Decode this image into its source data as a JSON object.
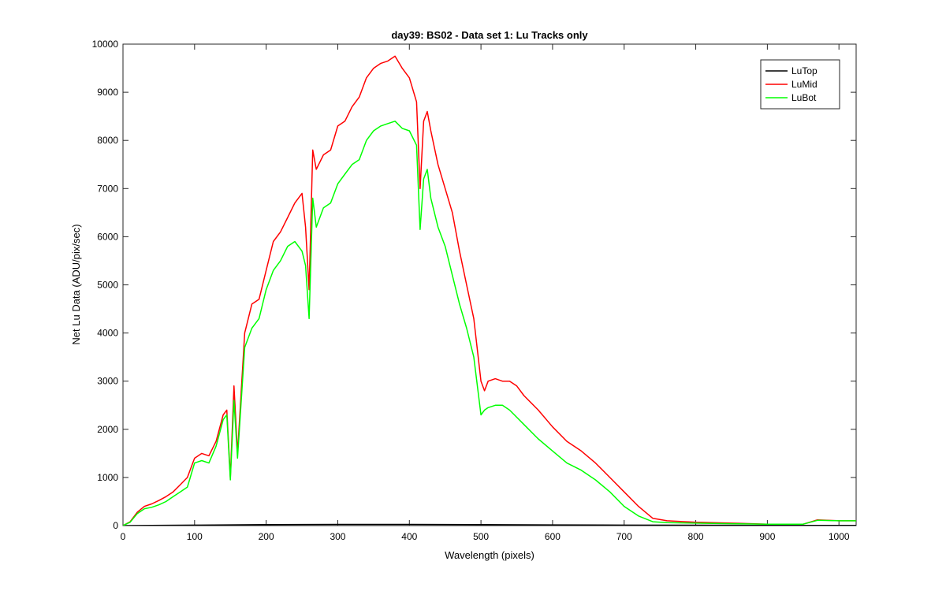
{
  "chart_data": {
    "type": "line",
    "title": "day39: BS02 - Data set 1: Lu Tracks only",
    "xlabel": "Wavelength (pixels)",
    "ylabel": "Net Lu Data (ADU/pix/sec)",
    "xlim": [
      0,
      1024
    ],
    "ylim": [
      0,
      10000
    ],
    "xticks": [
      0,
      100,
      200,
      300,
      400,
      500,
      600,
      700,
      800,
      900,
      1000
    ],
    "yticks": [
      0,
      1000,
      2000,
      3000,
      4000,
      5000,
      6000,
      7000,
      8000,
      9000,
      10000
    ],
    "grid": false,
    "legend_position": "top-right",
    "series": [
      {
        "name": "LuTop",
        "color": "#000000",
        "x": [
          0,
          100,
          200,
          300,
          400,
          500,
          600,
          700,
          800,
          900,
          1024
        ],
        "y": [
          0,
          10,
          20,
          25,
          25,
          20,
          15,
          10,
          8,
          5,
          5
        ]
      },
      {
        "name": "LuMid",
        "color": "#ff0000",
        "x": [
          0,
          10,
          20,
          30,
          40,
          50,
          60,
          70,
          80,
          90,
          100,
          110,
          120,
          130,
          140,
          145,
          150,
          155,
          160,
          170,
          180,
          190,
          200,
          210,
          220,
          230,
          240,
          250,
          255,
          260,
          265,
          270,
          280,
          290,
          300,
          310,
          320,
          330,
          340,
          350,
          360,
          370,
          380,
          390,
          400,
          410,
          415,
          420,
          425,
          430,
          440,
          450,
          460,
          470,
          480,
          490,
          500,
          505,
          510,
          520,
          530,
          540,
          550,
          560,
          580,
          600,
          620,
          640,
          660,
          680,
          700,
          720,
          740,
          760,
          800,
          850,
          900,
          950,
          970,
          1000,
          1024
        ],
        "y": [
          0,
          80,
          280,
          400,
          450,
          520,
          600,
          700,
          850,
          1000,
          1400,
          1500,
          1450,
          1750,
          2300,
          2400,
          1000,
          2900,
          1500,
          4000,
          4600,
          4700,
          5300,
          5900,
          6100,
          6400,
          6700,
          6900,
          6200,
          4900,
          7800,
          7400,
          7700,
          7800,
          8300,
          8400,
          8700,
          8900,
          9300,
          9500,
          9600,
          9650,
          9750,
          9500,
          9300,
          8800,
          7000,
          8400,
          8600,
          8200,
          7500,
          7000,
          6500,
          5700,
          5000,
          4300,
          3000,
          2800,
          3000,
          3050,
          3000,
          3000,
          2900,
          2700,
          2400,
          2050,
          1750,
          1550,
          1300,
          1000,
          700,
          400,
          150,
          100,
          70,
          50,
          30,
          30,
          120,
          100,
          100
        ]
      },
      {
        "name": "LuBot",
        "color": "#00ff00",
        "x": [
          0,
          10,
          20,
          30,
          40,
          50,
          60,
          70,
          80,
          90,
          100,
          110,
          120,
          130,
          140,
          145,
          150,
          155,
          160,
          170,
          180,
          190,
          200,
          210,
          220,
          230,
          240,
          250,
          255,
          260,
          265,
          270,
          280,
          290,
          300,
          310,
          320,
          330,
          340,
          350,
          360,
          370,
          380,
          390,
          400,
          410,
          415,
          420,
          425,
          430,
          440,
          450,
          460,
          470,
          480,
          490,
          500,
          505,
          510,
          520,
          530,
          540,
          550,
          560,
          580,
          600,
          620,
          640,
          660,
          680,
          700,
          720,
          740,
          760,
          800,
          850,
          900,
          950,
          970,
          1000,
          1024
        ],
        "y": [
          0,
          70,
          250,
          350,
          380,
          430,
          500,
          600,
          700,
          800,
          1300,
          1350,
          1300,
          1650,
          2200,
          2300,
          950,
          2600,
          1400,
          3700,
          4100,
          4300,
          4900,
          5300,
          5500,
          5800,
          5900,
          5700,
          5400,
          4300,
          6800,
          6200,
          6600,
          6700,
          7100,
          7300,
          7500,
          7600,
          8000,
          8200,
          8300,
          8350,
          8400,
          8250,
          8200,
          7900,
          6150,
          7200,
          7400,
          6800,
          6200,
          5800,
          5200,
          4600,
          4100,
          3500,
          2300,
          2400,
          2450,
          2500,
          2500,
          2400,
          2250,
          2100,
          1800,
          1550,
          1300,
          1150,
          950,
          700,
          400,
          200,
          80,
          60,
          50,
          40,
          30,
          30,
          110,
          100,
          100
        ]
      }
    ]
  }
}
